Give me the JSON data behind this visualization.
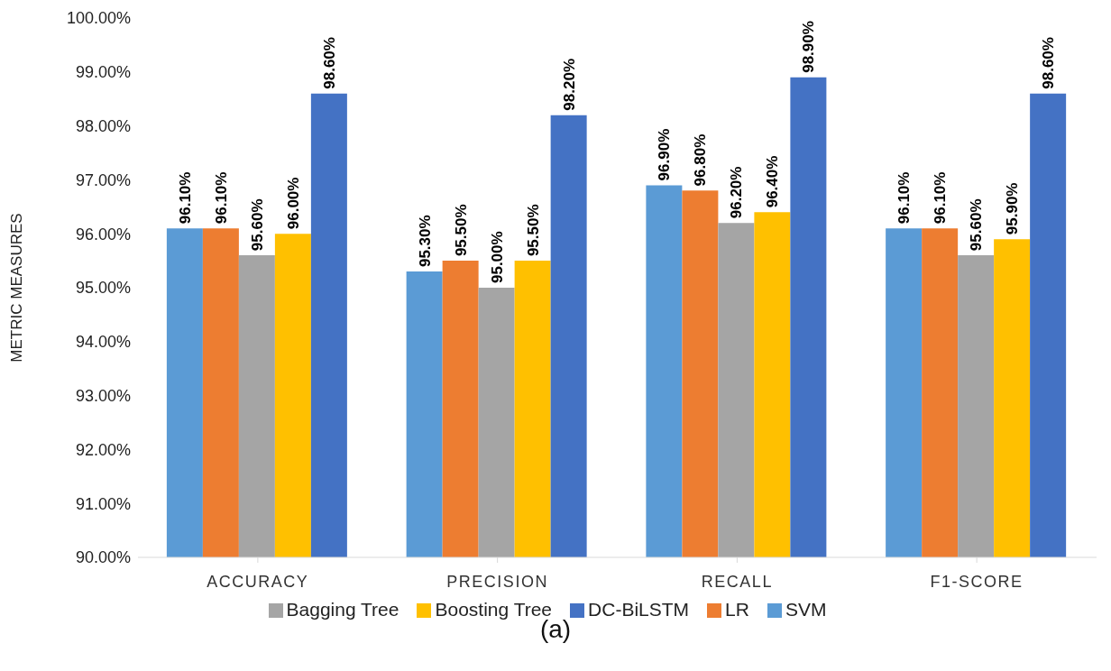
{
  "chart_data": {
    "type": "bar",
    "ylabel": "METRIC MEASURES",
    "categories": [
      "ACCURACY",
      "PRECISION",
      "RECALL",
      "F1-SCORE"
    ],
    "series": [
      {
        "name": "SVM",
        "color": "#5b9bd5",
        "values": [
          96.1,
          95.3,
          96.9,
          96.1
        ],
        "value_labels": [
          "96.10%",
          "95.30%",
          "96.90%",
          "96.10%"
        ]
      },
      {
        "name": "LR",
        "color": "#ed7d31",
        "values": [
          96.1,
          95.5,
          96.8,
          96.1
        ],
        "value_labels": [
          "96.10%",
          "95.50%",
          "96.80%",
          "96.10%"
        ]
      },
      {
        "name": "Bagging Tree",
        "color": "#a5a5a5",
        "values": [
          95.6,
          95.0,
          96.2,
          95.6
        ],
        "value_labels": [
          "95.60%",
          "95.00%",
          "96.20%",
          "95.60%"
        ]
      },
      {
        "name": "Boosting Tree",
        "color": "#ffc000",
        "values": [
          96.0,
          95.5,
          96.4,
          95.9
        ],
        "value_labels": [
          "96.00%",
          "95.50%",
          "96.40%",
          "95.90%"
        ]
      },
      {
        "name": "DC-BiLSTM",
        "color": "#4472c4",
        "values": [
          98.6,
          98.2,
          98.9,
          98.6
        ],
        "value_labels": [
          "98.60%",
          "98.20%",
          "98.90%",
          "98.60%"
        ]
      }
    ],
    "ylim": [
      90,
      100
    ],
    "yticks": [
      {
        "value": 90,
        "label": "90.00%"
      },
      {
        "value": 91,
        "label": "91.00%"
      },
      {
        "value": 92,
        "label": "92.00%"
      },
      {
        "value": 93,
        "label": "93.00%"
      },
      {
        "value": 94,
        "label": "94.00%"
      },
      {
        "value": 95,
        "label": "95.00%"
      },
      {
        "value": 96,
        "label": "96.00%"
      },
      {
        "value": 97,
        "label": "97.00%"
      },
      {
        "value": 98,
        "label": "98.00%"
      },
      {
        "value": 99,
        "label": "99.00%"
      },
      {
        "value": 100,
        "label": "100.00%"
      }
    ],
    "grid": false,
    "legend": "bottom",
    "annotations": [
      "(a)"
    ]
  }
}
